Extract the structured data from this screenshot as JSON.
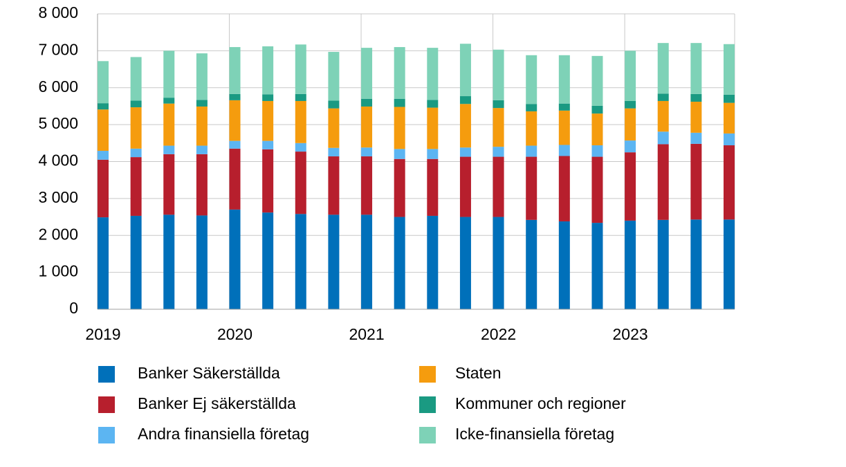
{
  "chart_data": {
    "type": "stacked_bar",
    "categories": [
      "2019",
      null,
      null,
      null,
      "2020",
      null,
      null,
      null,
      "2021",
      null,
      null,
      null,
      "2022",
      null,
      null,
      null,
      "2023",
      null,
      null,
      null
    ],
    "series": [
      {
        "name": "Banker Säkerställda",
        "color": "#0070BA",
        "values": [
          2490,
          2530,
          2560,
          2540,
          2700,
          2620,
          2580,
          2560,
          2560,
          2500,
          2530,
          2500,
          2500,
          2420,
          2380,
          2340,
          2400,
          2420,
          2430,
          2430
        ]
      },
      {
        "name": "Banker Ej säkerställda",
        "color": "#B71F2D",
        "values": [
          1560,
          1590,
          1640,
          1660,
          1650,
          1710,
          1690,
          1580,
          1580,
          1570,
          1540,
          1630,
          1630,
          1710,
          1770,
          1790,
          1850,
          2050,
          2050,
          2010
        ]
      },
      {
        "name": "Andra finansiella företag",
        "color": "#5CB5F2",
        "values": [
          240,
          230,
          230,
          230,
          210,
          230,
          230,
          230,
          240,
          270,
          270,
          250,
          270,
          300,
          300,
          310,
          320,
          340,
          300,
          320
        ]
      },
      {
        "name": "Staten",
        "color": "#F59C0E",
        "values": [
          1120,
          1120,
          1140,
          1060,
          1100,
          1080,
          1140,
          1070,
          1110,
          1140,
          1120,
          1180,
          1050,
          930,
          930,
          860,
          870,
          830,
          840,
          830
        ]
      },
      {
        "name": "Kommuner och regioner",
        "color": "#1A9A82",
        "values": [
          170,
          180,
          160,
          180,
          170,
          180,
          190,
          210,
          210,
          220,
          210,
          210,
          210,
          200,
          190,
          210,
          200,
          200,
          210,
          220
        ]
      },
      {
        "name": "Icke-finansiella företag",
        "color": "#7ED2B7",
        "values": [
          1140,
          1180,
          1270,
          1260,
          1270,
          1300,
          1340,
          1320,
          1380,
          1400,
          1410,
          1420,
          1370,
          1320,
          1310,
          1350,
          1360,
          1370,
          1380,
          1370
        ]
      }
    ],
    "ylim": [
      0,
      8000
    ],
    "yticks": [
      0,
      {
        "value": 1000,
        "label": "1 000"
      },
      {
        "value": 2000,
        "label": "2 000"
      },
      {
        "value": 3000,
        "label": "3 000"
      },
      {
        "value": 4000,
        "label": "4 000"
      },
      {
        "value": 5000,
        "label": "5 000"
      },
      {
        "value": 6000,
        "label": "6 000"
      },
      {
        "value": 7000,
        "label": "7 000"
      },
      {
        "value": 8000,
        "label": "8 000"
      }
    ],
    "grid": true
  }
}
